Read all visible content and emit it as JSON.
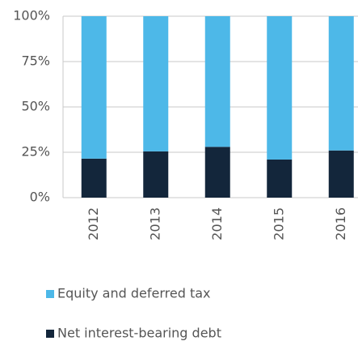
{
  "chart_data": {
    "type": "stacked_bar",
    "categories": [
      "2012",
      "2013",
      "2014",
      "2015",
      "2016"
    ],
    "series": [
      {
        "name": "Net interest-bearing debt",
        "color": "#13263b",
        "values": [
          21.5,
          25.5,
          28,
          21,
          26
        ]
      },
      {
        "name": "Equity and deferred tax",
        "color": "#4db8e8",
        "values": [
          78.5,
          74.5,
          72,
          79,
          74
        ]
      }
    ],
    "ylim": [
      0,
      100
    ],
    "yticks": [
      {
        "value": 0,
        "label": "0%"
      },
      {
        "value": 25,
        "label": "25%"
      },
      {
        "value": 50,
        "label": "50%"
      },
      {
        "value": 75,
        "label": "75%"
      },
      {
        "value": 100,
        "label": "100%"
      }
    ],
    "grid": true
  }
}
